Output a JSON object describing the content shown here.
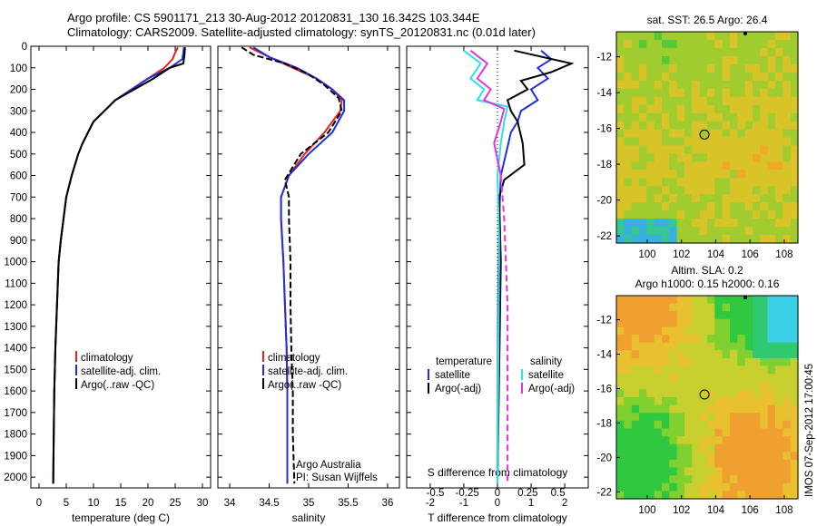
{
  "header": {
    "line1": "Argo profile: CS 5901171_213 30-Aug-2012 20120831_130 16.342S 103.344E",
    "line2": "Climatology: CARS2009. Satellite-adjusted climatology: synTS_20120831.nc (0.01d later)"
  },
  "side_stamp": "IMOS 07-Sep-2012 17:00:45",
  "colors": {
    "climatology": "#e8231c",
    "satellite": "#1f2fdd",
    "argo": "#000000",
    "sat_salinity": "#2ee0e8",
    "argo_salinity": "#e233e0"
  },
  "chart_data": [
    {
      "type": "line",
      "id": "temperature",
      "xlabel": "temperature (deg C)",
      "xlim": [
        -1.5,
        31.5
      ],
      "xticks": [
        0,
        5,
        10,
        15,
        20,
        25,
        30
      ],
      "ylim": [
        0,
        2050
      ],
      "yticks": [
        0,
        100,
        200,
        300,
        400,
        500,
        600,
        700,
        800,
        900,
        1000,
        1100,
        1200,
        1300,
        1400,
        1500,
        1600,
        1700,
        1800,
        1900,
        2000
      ],
      "legend": [
        "climatology",
        "satellite-adj. clim.",
        "Argo(..raw -QC)"
      ],
      "legend_position": "lower-right",
      "series": [
        {
          "name": "climatology",
          "color_key": "climatology",
          "x": [
            25.5,
            25,
            24.5,
            23,
            20,
            17,
            14,
            12,
            10,
            9,
            8,
            7.2,
            6,
            5,
            4.5,
            4,
            3.6,
            3.3,
            3,
            2.8,
            2.7,
            2.6
          ],
          "y": [
            5,
            30,
            60,
            100,
            150,
            200,
            250,
            300,
            350,
            400,
            450,
            500,
            600,
            700,
            800,
            900,
            1000,
            1200,
            1400,
            1600,
            1800,
            2030
          ]
        },
        {
          "name": "satellite-adj. clim.",
          "color_key": "satellite",
          "x": [
            26.6,
            26.5,
            26.3,
            24,
            20,
            17,
            14,
            12,
            10,
            9,
            8,
            7.2,
            6,
            5,
            4.5,
            4,
            3.6,
            3.3,
            3,
            2.8,
            2.7,
            2.6
          ],
          "y": [
            5,
            30,
            60,
            100,
            150,
            200,
            250,
            300,
            350,
            400,
            450,
            500,
            600,
            700,
            800,
            900,
            1000,
            1200,
            1400,
            1600,
            1800,
            2030
          ]
        },
        {
          "name": "Argo(..raw -QC)",
          "color_key": "argo",
          "x": [
            26.8,
            26.7,
            26.5,
            24,
            21,
            17.5,
            14,
            12,
            10,
            9,
            8,
            7.2,
            6,
            5,
            4.5,
            4,
            3.6,
            3.3,
            3,
            2.8,
            2.7,
            2.6
          ],
          "y": [
            5,
            40,
            80,
            100,
            150,
            200,
            250,
            300,
            350,
            400,
            450,
            500,
            600,
            700,
            800,
            900,
            1000,
            1200,
            1400,
            1600,
            1800,
            2030
          ]
        }
      ],
      "annotations": []
    },
    {
      "type": "line",
      "id": "salinity",
      "xlabel": "salinity",
      "xlim": [
        33.85,
        36.15
      ],
      "xticks": [
        34,
        34.5,
        35,
        35.5,
        36
      ],
      "ylim": [
        0,
        2050
      ],
      "legend": [
        "climatology",
        "satellite-adj. clim.",
        "Argo(..raw -QC)"
      ],
      "legend_position": "lower-right",
      "annotations": [
        "Argo Australia",
        "PI: Susan Wijffels"
      ],
      "series": [
        {
          "name": "climatology",
          "color_key": "climatology",
          "x": [
            34.25,
            34.5,
            34.8,
            35.1,
            35.3,
            35.42,
            35.4,
            35.2,
            34.95,
            34.75,
            34.65,
            34.65,
            34.68,
            34.7,
            34.72,
            34.73,
            34.73,
            34.73,
            34.73,
            34.73
          ],
          "y": [
            5,
            50,
            100,
            150,
            200,
            250,
            300,
            400,
            500,
            600,
            700,
            800,
            1000,
            1200,
            1400,
            1600,
            1700,
            1800,
            1900,
            2030
          ]
        },
        {
          "name": "satellite-adj. clim.",
          "color_key": "satellite",
          "x": [
            34.3,
            34.5,
            34.85,
            35.1,
            35.3,
            35.45,
            35.45,
            35.3,
            35.0,
            34.75,
            34.65,
            34.65,
            34.68,
            34.7,
            34.72,
            34.73,
            34.73,
            34.73,
            34.73
          ],
          "y": [
            5,
            50,
            100,
            150,
            200,
            250,
            300,
            400,
            500,
            600,
            700,
            800,
            1000,
            1200,
            1400,
            1600,
            1800,
            1900,
            2030
          ]
        },
        {
          "name": "Argo(..raw -QC)",
          "color_key": "argo",
          "x": [
            34.15,
            34.3,
            34.7,
            35.0,
            35.2,
            35.38,
            35.42,
            35.25,
            34.9,
            34.7,
            34.75,
            34.75,
            34.77,
            34.77,
            34.78,
            34.8,
            34.8,
            34.82
          ],
          "y": [
            5,
            40,
            80,
            130,
            180,
            240,
            300,
            400,
            500,
            620,
            700,
            800,
            1000,
            1200,
            1400,
            1600,
            1800,
            2030
          ]
        }
      ]
    },
    {
      "type": "line",
      "id": "differences",
      "xlabel": "T difference from climatology",
      "xlabel_top": "S difference from climatology",
      "xlim": [
        -2.7,
        2.7
      ],
      "xticks": [
        -2,
        -1,
        0,
        1,
        2
      ],
      "top_ticks": [
        {
          "label": "-0.5",
          "v": -1.85
        },
        {
          "label": "-0.25",
          "v": -0.9
        },
        {
          "label": "0",
          "v": 0
        },
        {
          "label": "0.25",
          "v": 0.9
        },
        {
          "label": "0.5",
          "v": 1.8
        }
      ],
      "ylim": [
        0,
        2050
      ],
      "legend_titles": [
        "temperature",
        "salinity"
      ],
      "legend_t": [
        "satellite",
        "Argo(-adj)"
      ],
      "legend_s": [
        "satellite",
        "Argo(-adj)"
      ],
      "series": [
        {
          "name": "satellite",
          "color_key": "satellite",
          "x": [
            1.3,
            1.6,
            1.2,
            1.5,
            1.0,
            1.2,
            0.7,
            0.6,
            0.4,
            0.25,
            0.1,
            0.05,
            0.02,
            0.0
          ],
          "y": [
            20,
            60,
            100,
            150,
            200,
            250,
            300,
            350,
            400,
            500,
            600,
            800,
            1200,
            2030
          ]
        },
        {
          "name": "Argo(-adj)",
          "color_key": "argo",
          "x": [
            0.5,
            2.2,
            1.6,
            0.7,
            0.9,
            0.3,
            0.4,
            0.6,
            0.75,
            0.8,
            0.2,
            0.05,
            0.1,
            0.05,
            0.0
          ],
          "y": [
            20,
            80,
            120,
            160,
            200,
            250,
            300,
            350,
            450,
            550,
            620,
            700,
            1000,
            1500,
            2030
          ]
        },
        {
          "name": "satellite",
          "color_key": "sat_salinity",
          "x": [
            -1.0,
            -0.5,
            -0.8,
            -0.4,
            -0.6,
            0.3,
            0.2,
            0.1,
            0.0,
            0.05,
            0.0
          ],
          "y": [
            20,
            80,
            150,
            200,
            250,
            280,
            350,
            450,
            600,
            900,
            2030
          ]
        },
        {
          "name": "Argo(-adj)",
          "color_key": "argo_salinity",
          "dashed_below": 600,
          "x": [
            -0.8,
            -0.3,
            -0.6,
            -0.2,
            -0.4,
            0.2,
            0.1,
            -0.1,
            0.1,
            0.2,
            0.3,
            0.3
          ],
          "y": [
            20,
            80,
            150,
            200,
            250,
            290,
            350,
            450,
            600,
            800,
            1200,
            2030
          ]
        }
      ]
    },
    {
      "type": "heatmap",
      "id": "sst_map",
      "title": "sat. SST: 26.5 Argo: 26.4",
      "xlim": [
        98.2,
        108.8
      ],
      "ylim": [
        -22.4,
        -10.6
      ],
      "xticks": [
        100,
        102,
        104,
        106,
        108
      ],
      "yticks": [
        -12,
        -14,
        -16,
        -18,
        -20,
        -22
      ],
      "marker": {
        "lon": 103.344,
        "lat": -16.342
      }
    },
    {
      "type": "heatmap",
      "id": "sla_map",
      "title": "Altim. SLA: 0.2",
      "subtitle": "Argo h1000: 0.15 h2000: 0.16",
      "xlim": [
        98.2,
        108.8
      ],
      "ylim": [
        -22.4,
        -10.6
      ],
      "xticks": [
        100,
        102,
        104,
        106,
        108
      ],
      "yticks": [
        -12,
        -14,
        -16,
        -18,
        -20,
        -22
      ],
      "marker": {
        "lon": 103.344,
        "lat": -16.342
      }
    }
  ]
}
